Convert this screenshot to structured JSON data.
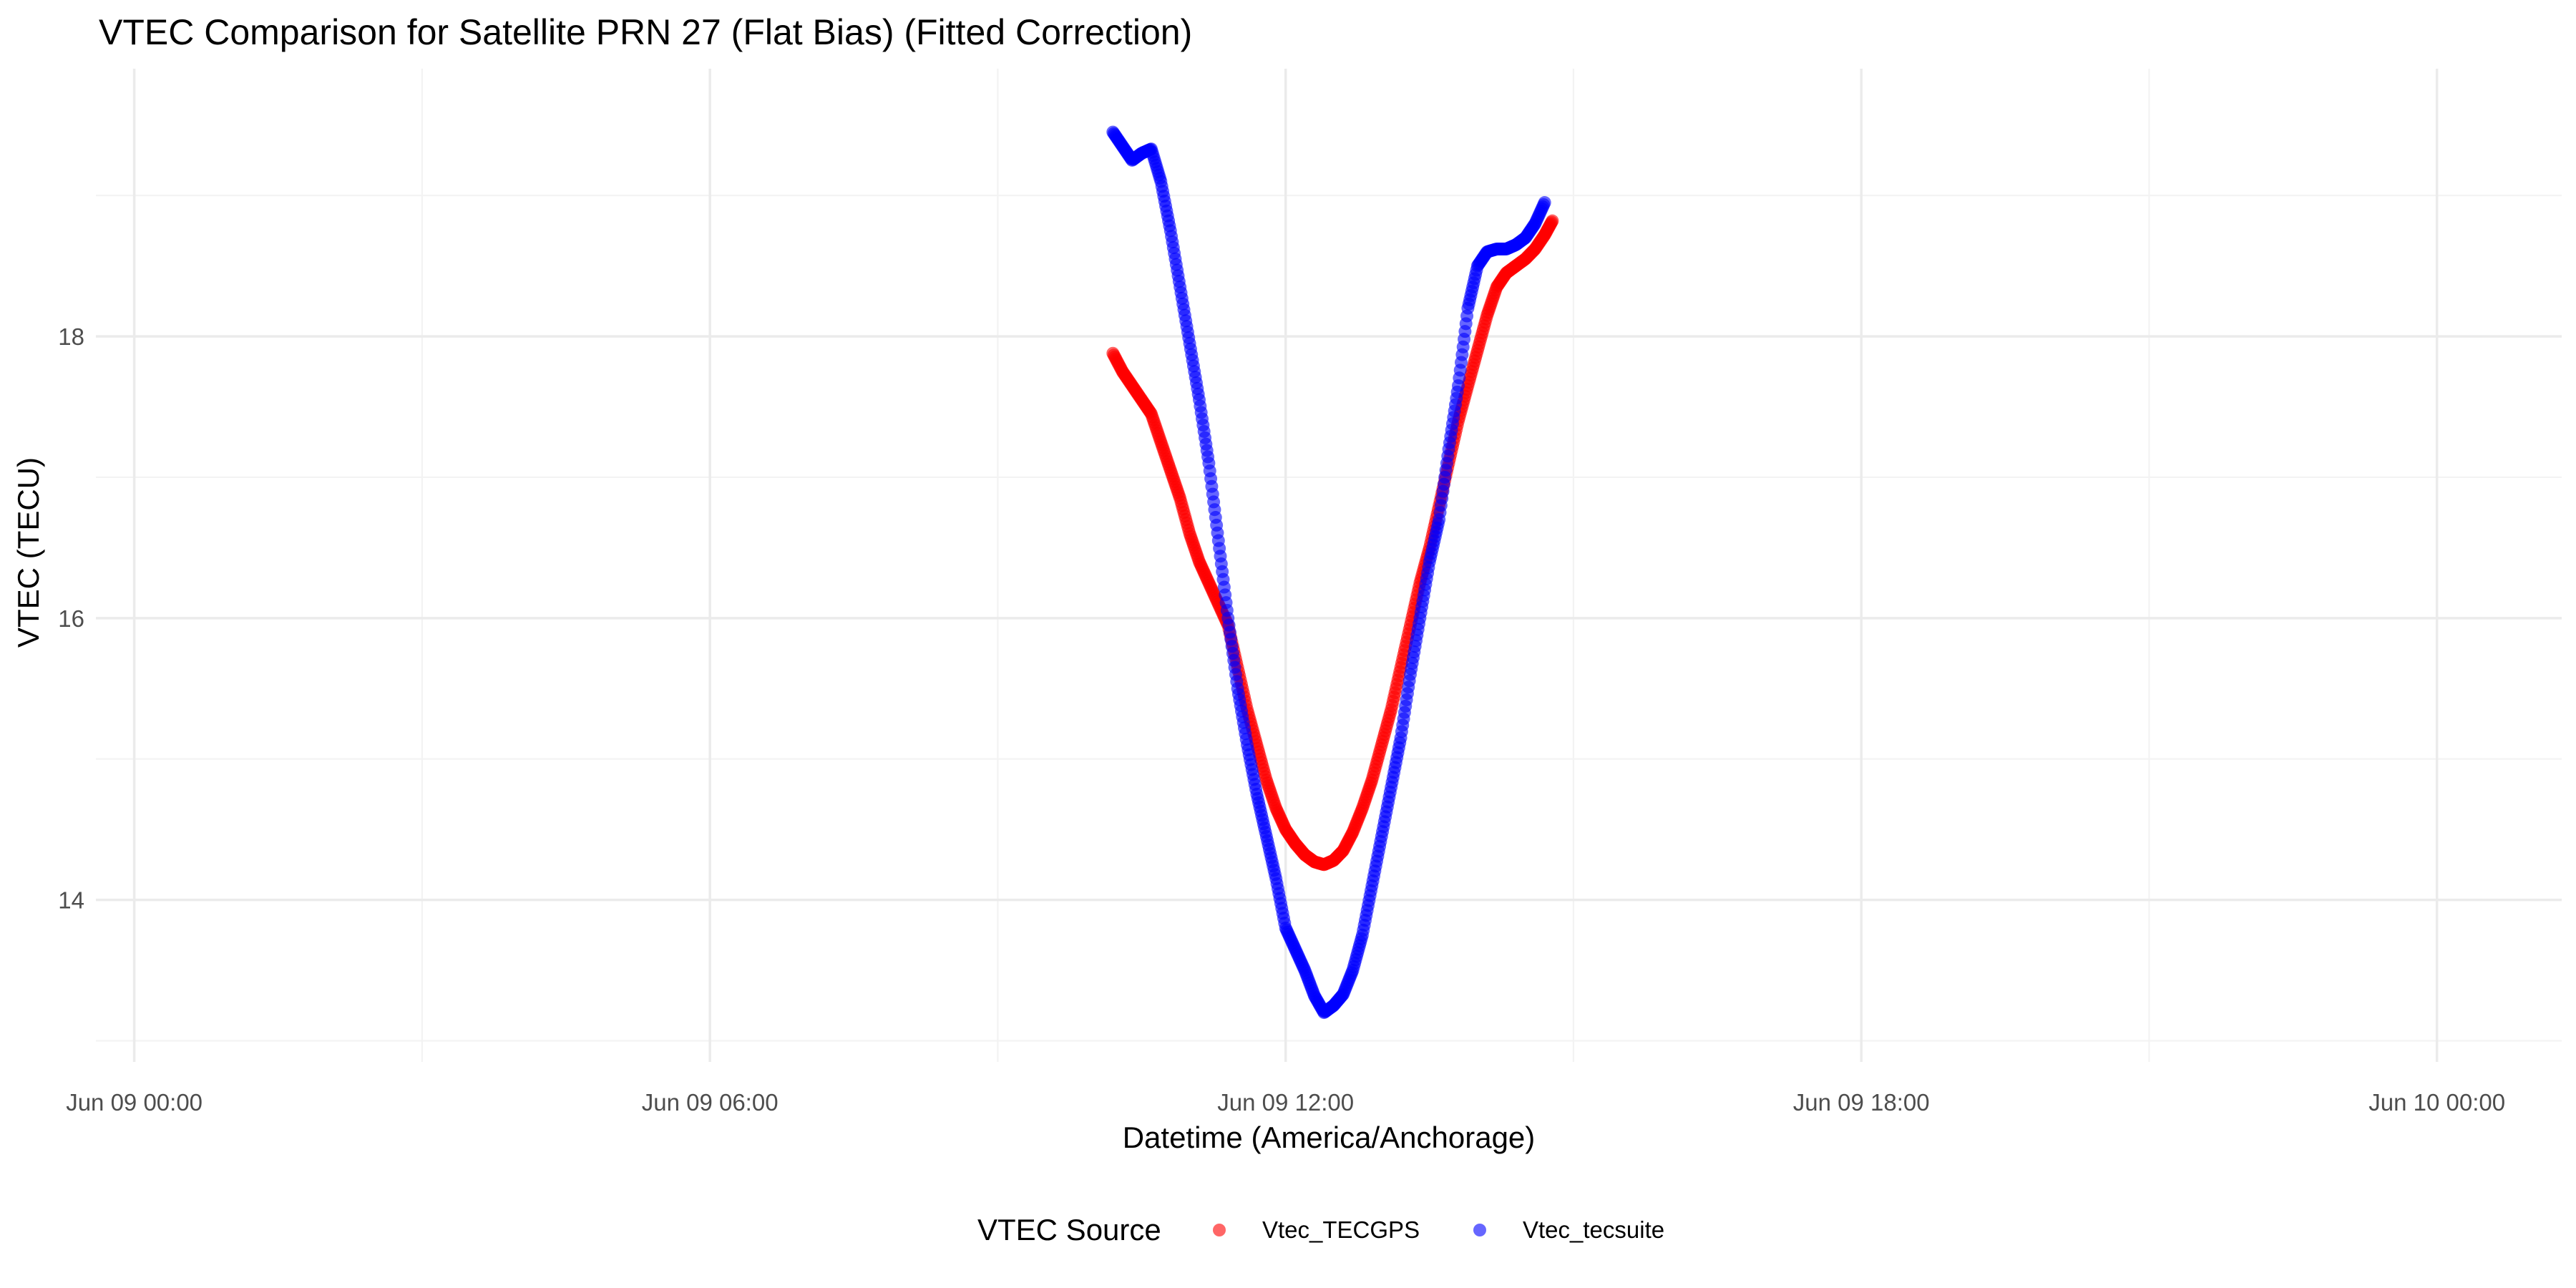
{
  "chart_data": {
    "type": "scatter",
    "title": "VTEC Comparison for Satellite PRN 27 (Flat Bias)   (Fitted Correction)",
    "xlabel": "Datetime (America/Anchorage)",
    "ylabel": "VTEC (TECU)",
    "x_unit": "hours since Jun 09 00:00 (America/Anchorage)",
    "xlim": [
      -0.4,
      25.3
    ],
    "ylim": [
      12.85,
      19.9
    ],
    "x_ticks": [
      {
        "value": 0,
        "label": "Jun 09 00:00"
      },
      {
        "value": 6,
        "label": "Jun 09 06:00"
      },
      {
        "value": 12,
        "label": "Jun 09 12:00"
      },
      {
        "value": 18,
        "label": "Jun 09 18:00"
      },
      {
        "value": 24,
        "label": "Jun 10 00:00"
      }
    ],
    "x_minor": [
      3,
      9,
      15,
      21
    ],
    "y_ticks": [
      {
        "value": 14,
        "label": "14"
      },
      {
        "value": 16,
        "label": "16"
      },
      {
        "value": 18,
        "label": "18"
      }
    ],
    "y_minor": [
      13,
      15,
      17,
      19
    ],
    "grid": true,
    "legend": {
      "title": "VTEC Source",
      "position": "bottom"
    },
    "series": [
      {
        "name": "Vtec_TECGPS",
        "color": "#ff0000",
        "points": [
          [
            10.2,
            17.88
          ],
          [
            10.3,
            17.75
          ],
          [
            10.4,
            17.65
          ],
          [
            10.5,
            17.55
          ],
          [
            10.6,
            17.45
          ],
          [
            10.7,
            17.25
          ],
          [
            10.8,
            17.05
          ],
          [
            10.9,
            16.85
          ],
          [
            11.0,
            16.6
          ],
          [
            11.1,
            16.4
          ],
          [
            11.2,
            16.25
          ],
          [
            11.3,
            16.1
          ],
          [
            11.4,
            15.95
          ],
          [
            11.5,
            15.65
          ],
          [
            11.6,
            15.35
          ],
          [
            11.7,
            15.1
          ],
          [
            11.8,
            14.85
          ],
          [
            11.9,
            14.65
          ],
          [
            12.0,
            14.5
          ],
          [
            12.1,
            14.4
          ],
          [
            12.2,
            14.32
          ],
          [
            12.3,
            14.27
          ],
          [
            12.4,
            14.25
          ],
          [
            12.5,
            14.28
          ],
          [
            12.6,
            14.35
          ],
          [
            12.7,
            14.48
          ],
          [
            12.8,
            14.65
          ],
          [
            12.9,
            14.85
          ],
          [
            13.0,
            15.1
          ],
          [
            13.1,
            15.35
          ],
          [
            13.2,
            15.65
          ],
          [
            13.3,
            15.95
          ],
          [
            13.4,
            16.25
          ],
          [
            13.5,
            16.5
          ],
          [
            13.6,
            16.8
          ],
          [
            13.7,
            17.1
          ],
          [
            13.8,
            17.4
          ],
          [
            13.9,
            17.65
          ],
          [
            14.0,
            17.9
          ],
          [
            14.1,
            18.15
          ],
          [
            14.2,
            18.35
          ],
          [
            14.3,
            18.45
          ],
          [
            14.4,
            18.5
          ],
          [
            14.5,
            18.55
          ],
          [
            14.6,
            18.62
          ],
          [
            14.7,
            18.72
          ],
          [
            14.78,
            18.82
          ]
        ]
      },
      {
        "name": "Vtec_tecsuite",
        "color": "#0000ff",
        "points": [
          [
            10.2,
            19.45
          ],
          [
            10.3,
            19.35
          ],
          [
            10.4,
            19.25
          ],
          [
            10.5,
            19.3
          ],
          [
            10.6,
            19.33
          ],
          [
            10.7,
            19.1
          ],
          [
            10.8,
            18.75
          ],
          [
            10.9,
            18.35
          ],
          [
            11.0,
            17.95
          ],
          [
            11.1,
            17.55
          ],
          [
            11.2,
            17.1
          ],
          [
            11.3,
            16.55
          ],
          [
            11.4,
            16.0
          ],
          [
            11.5,
            15.5
          ],
          [
            11.6,
            15.1
          ],
          [
            11.7,
            14.75
          ],
          [
            11.8,
            14.45
          ],
          [
            11.9,
            14.15
          ],
          [
            12.0,
            13.8
          ],
          [
            12.1,
            13.65
          ],
          [
            12.2,
            13.5
          ],
          [
            12.3,
            13.32
          ],
          [
            12.4,
            13.2
          ],
          [
            12.5,
            13.25
          ],
          [
            12.6,
            13.33
          ],
          [
            12.7,
            13.5
          ],
          [
            12.8,
            13.75
          ],
          [
            12.9,
            14.1
          ],
          [
            13.0,
            14.45
          ],
          [
            13.1,
            14.8
          ],
          [
            13.2,
            15.15
          ],
          [
            13.3,
            15.6
          ],
          [
            13.4,
            16.0
          ],
          [
            13.5,
            16.4
          ],
          [
            13.6,
            16.7
          ],
          [
            13.7,
            17.2
          ],
          [
            13.8,
            17.65
          ],
          [
            13.9,
            18.2
          ],
          [
            14.0,
            18.5
          ],
          [
            14.1,
            18.6
          ],
          [
            14.2,
            18.62
          ],
          [
            14.3,
            18.62
          ],
          [
            14.4,
            18.65
          ],
          [
            14.5,
            18.7
          ],
          [
            14.6,
            18.8
          ],
          [
            14.7,
            18.95
          ]
        ]
      }
    ]
  }
}
